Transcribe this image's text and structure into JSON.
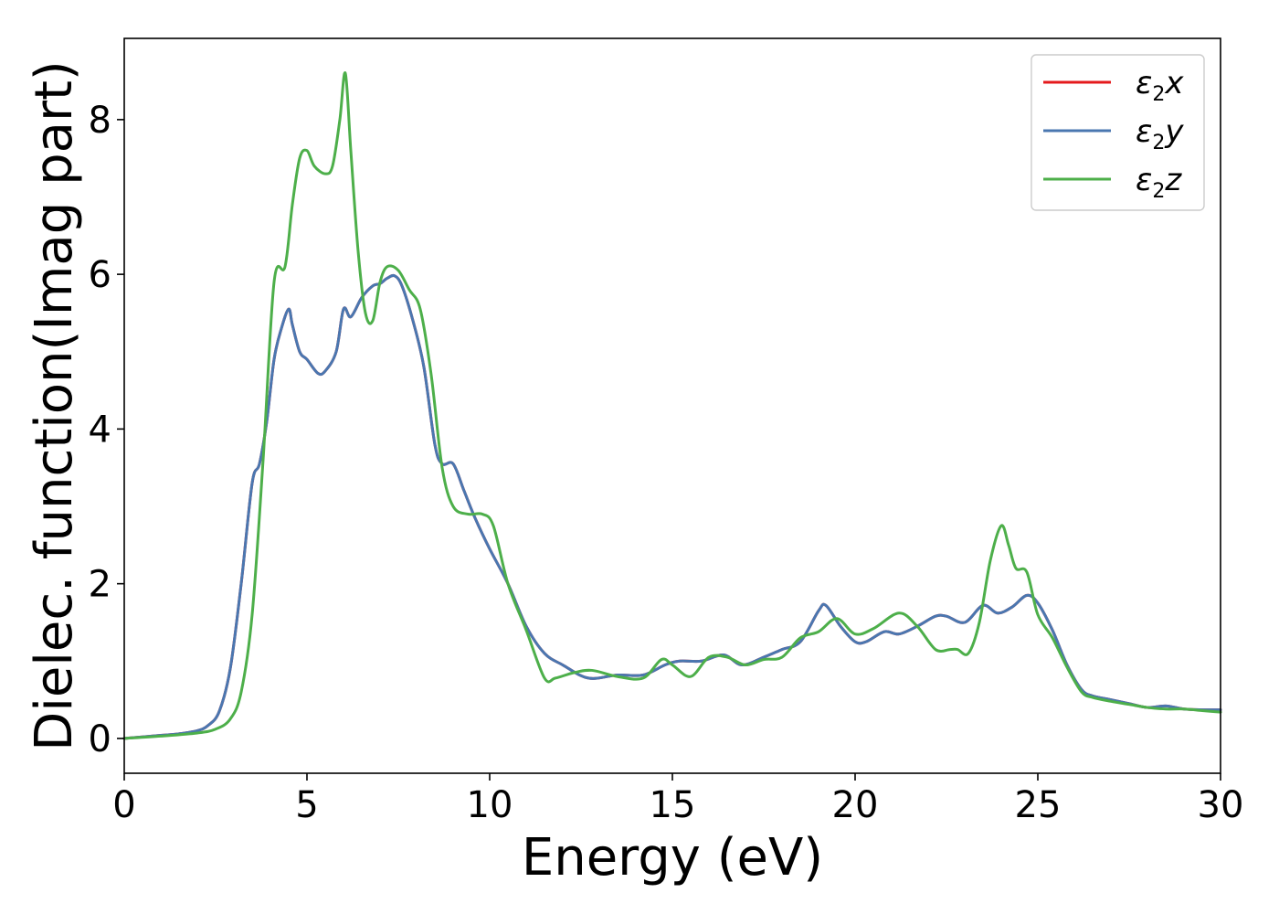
{
  "chart_data": {
    "type": "line",
    "xlabel": "Energy (eV)",
    "ylabel": "Dielec. function(Imag part)",
    "xlim": [
      0,
      30
    ],
    "ylim": [
      -0.45,
      9.05
    ],
    "xticks": [
      0,
      5,
      10,
      15,
      20,
      25,
      30
    ],
    "yticks": [
      0,
      2,
      4,
      6,
      8
    ],
    "grid": false,
    "legend_position": "top-right",
    "series": [
      {
        "name": "ε2x",
        "legend_label": {
          "main": "ε",
          "sub": "2",
          "suffix": "x"
        },
        "color": "#e41a1c",
        "x": [
          0,
          1,
          1.5,
          2,
          2.3,
          2.6,
          2.9,
          3.2,
          3.5,
          3.7,
          3.9,
          4.1,
          4.3,
          4.5,
          4.6,
          4.8,
          5.0,
          5.3,
          5.5,
          5.8,
          6.0,
          6.2,
          6.5,
          6.8,
          7.0,
          7.2,
          7.4,
          7.6,
          7.9,
          8.2,
          8.5,
          8.7,
          9.0,
          9.3,
          9.6,
          10.0,
          10.5,
          11.0,
          11.5,
          12.0,
          12.7,
          13.5,
          14.2,
          14.8,
          15.2,
          15.8,
          16.4,
          16.9,
          17.5,
          18.0,
          18.5,
          19.0,
          19.2,
          19.6,
          20.0,
          20.3,
          20.8,
          21.2,
          21.7,
          22.2,
          22.5,
          23.0,
          23.5,
          23.9,
          24.3,
          24.7,
          25.0,
          25.4,
          25.8,
          26.2,
          26.5,
          27.0,
          27.5,
          28.0,
          28.5,
          29.0,
          29.5,
          30.0
        ],
        "values": [
          0.0,
          0.04,
          0.06,
          0.1,
          0.17,
          0.35,
          0.9,
          2.0,
          3.3,
          3.55,
          4.1,
          4.9,
          5.3,
          5.55,
          5.35,
          5.0,
          4.9,
          4.72,
          4.75,
          5.0,
          5.55,
          5.45,
          5.7,
          5.85,
          5.88,
          5.95,
          5.98,
          5.85,
          5.4,
          4.8,
          3.8,
          3.55,
          3.55,
          3.2,
          2.85,
          2.45,
          2.0,
          1.45,
          1.1,
          0.95,
          0.78,
          0.82,
          0.82,
          0.95,
          1.0,
          1.0,
          1.08,
          0.95,
          1.05,
          1.15,
          1.25,
          1.65,
          1.72,
          1.45,
          1.25,
          1.25,
          1.38,
          1.35,
          1.45,
          1.58,
          1.58,
          1.5,
          1.72,
          1.62,
          1.7,
          1.85,
          1.75,
          1.4,
          0.95,
          0.63,
          0.55,
          0.5,
          0.45,
          0.4,
          0.42,
          0.38,
          0.37,
          0.37
        ]
      },
      {
        "name": "ε2y",
        "legend_label": {
          "main": "ε",
          "sub": "2",
          "suffix": "y"
        },
        "color": "#4a77b0",
        "x": [
          0,
          1,
          1.5,
          2,
          2.3,
          2.6,
          2.9,
          3.2,
          3.5,
          3.7,
          3.9,
          4.1,
          4.3,
          4.5,
          4.6,
          4.8,
          5.0,
          5.3,
          5.5,
          5.8,
          6.0,
          6.2,
          6.5,
          6.8,
          7.0,
          7.2,
          7.4,
          7.6,
          7.9,
          8.2,
          8.5,
          8.7,
          9.0,
          9.3,
          9.6,
          10.0,
          10.5,
          11.0,
          11.5,
          12.0,
          12.7,
          13.5,
          14.2,
          14.8,
          15.2,
          15.8,
          16.4,
          16.9,
          17.5,
          18.0,
          18.5,
          19.0,
          19.2,
          19.6,
          20.0,
          20.3,
          20.8,
          21.2,
          21.7,
          22.2,
          22.5,
          23.0,
          23.5,
          23.9,
          24.3,
          24.7,
          25.0,
          25.4,
          25.8,
          26.2,
          26.5,
          27.0,
          27.5,
          28.0,
          28.5,
          29.0,
          29.5,
          30.0
        ],
        "values": [
          0.0,
          0.04,
          0.06,
          0.1,
          0.17,
          0.35,
          0.9,
          2.0,
          3.3,
          3.55,
          4.1,
          4.9,
          5.3,
          5.55,
          5.35,
          5.0,
          4.9,
          4.72,
          4.75,
          5.0,
          5.55,
          5.45,
          5.7,
          5.85,
          5.88,
          5.95,
          5.98,
          5.85,
          5.4,
          4.8,
          3.8,
          3.55,
          3.55,
          3.2,
          2.85,
          2.45,
          2.0,
          1.45,
          1.1,
          0.95,
          0.78,
          0.82,
          0.82,
          0.95,
          1.0,
          1.0,
          1.08,
          0.95,
          1.05,
          1.15,
          1.25,
          1.65,
          1.72,
          1.45,
          1.25,
          1.25,
          1.38,
          1.35,
          1.45,
          1.58,
          1.58,
          1.5,
          1.72,
          1.62,
          1.7,
          1.85,
          1.75,
          1.4,
          0.95,
          0.63,
          0.55,
          0.5,
          0.45,
          0.4,
          0.42,
          0.38,
          0.37,
          0.37
        ]
      },
      {
        "name": "ε2z",
        "legend_label": {
          "main": "ε",
          "sub": "2",
          "suffix": "z"
        },
        "color": "#4daf4a",
        "x": [
          0,
          1,
          2,
          2.5,
          2.9,
          3.2,
          3.5,
          3.8,
          4.1,
          4.4,
          4.6,
          4.8,
          5.0,
          5.2,
          5.5,
          5.7,
          5.9,
          6.05,
          6.2,
          6.4,
          6.6,
          6.8,
          7.0,
          7.2,
          7.5,
          7.8,
          8.1,
          8.4,
          8.7,
          9.0,
          9.4,
          9.8,
          10.1,
          10.5,
          11.0,
          11.5,
          11.8,
          12.3,
          12.8,
          13.5,
          14.2,
          14.7,
          15.0,
          15.5,
          16.0,
          16.5,
          17.0,
          17.5,
          18.0,
          18.5,
          19.0,
          19.5,
          20.0,
          20.5,
          21.2,
          21.7,
          22.2,
          22.6,
          22.8,
          23.1,
          23.4,
          23.7,
          24.0,
          24.2,
          24.4,
          24.7,
          25.0,
          25.4,
          25.8,
          26.2,
          26.5,
          27.0,
          27.5,
          28.0,
          28.5,
          29.0,
          29.5,
          30.0
        ],
        "values": [
          0.0,
          0.03,
          0.07,
          0.12,
          0.25,
          0.6,
          1.6,
          3.6,
          5.9,
          6.1,
          6.9,
          7.5,
          7.6,
          7.4,
          7.3,
          7.4,
          8.0,
          8.6,
          7.6,
          6.3,
          5.5,
          5.4,
          5.9,
          6.1,
          6.05,
          5.8,
          5.55,
          4.7,
          3.5,
          3.0,
          2.9,
          2.9,
          2.75,
          2.0,
          1.4,
          0.78,
          0.78,
          0.85,
          0.88,
          0.8,
          0.78,
          1.02,
          0.95,
          0.8,
          1.05,
          1.05,
          0.95,
          1.02,
          1.05,
          1.3,
          1.38,
          1.55,
          1.35,
          1.42,
          1.62,
          1.45,
          1.15,
          1.15,
          1.15,
          1.1,
          1.5,
          2.3,
          2.75,
          2.5,
          2.2,
          2.15,
          1.6,
          1.3,
          0.92,
          0.6,
          0.53,
          0.48,
          0.44,
          0.4,
          0.38,
          0.38,
          0.36,
          0.34
        ]
      }
    ]
  }
}
